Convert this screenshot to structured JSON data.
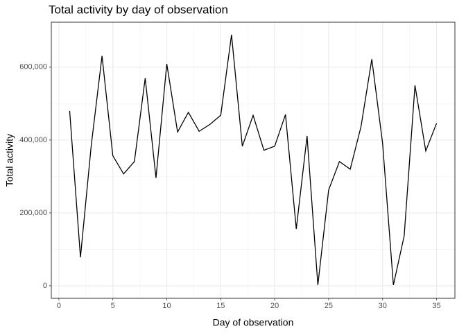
{
  "chart_data": {
    "type": "line",
    "title": "Total activity by day of observation",
    "x_label": "Day of observation",
    "y_label": "Total activity",
    "x": [
      1,
      2,
      3,
      4,
      5,
      6,
      7,
      8,
      9,
      10,
      11,
      12,
      13,
      14,
      15,
      16,
      17,
      18,
      19,
      20,
      21,
      22,
      23,
      24,
      25,
      26,
      27,
      28,
      29,
      30,
      31,
      32,
      33,
      34,
      35
    ],
    "series": [
      {
        "name": "Total activity",
        "color": "#000000",
        "values": [
          480000,
          78000,
          385000,
          631000,
          357000,
          307000,
          341000,
          570000,
          296000,
          609000,
          422000,
          476000,
          424000,
          443000,
          468000,
          689000,
          383000,
          468000,
          372000,
          383000,
          470000,
          156000,
          411000,
          2000,
          263000,
          341000,
          320000,
          437000,
          622000,
          391000,
          2000,
          137000,
          550000,
          370000,
          446000
        ]
      }
    ],
    "xlim": [
      -0.7,
      36.7
    ],
    "xticks": [
      0,
      5,
      10,
      15,
      20,
      25,
      30,
      35
    ],
    "ylim": [
      -34450,
      723450
    ],
    "yticks": [
      0,
      {
        "value": 200000,
        "label": "200,000"
      },
      {
        "value": 400000,
        "label": "400,000"
      },
      {
        "value": 600000,
        "label": "600,000"
      }
    ],
    "grid": true,
    "minor_grid": true
  }
}
